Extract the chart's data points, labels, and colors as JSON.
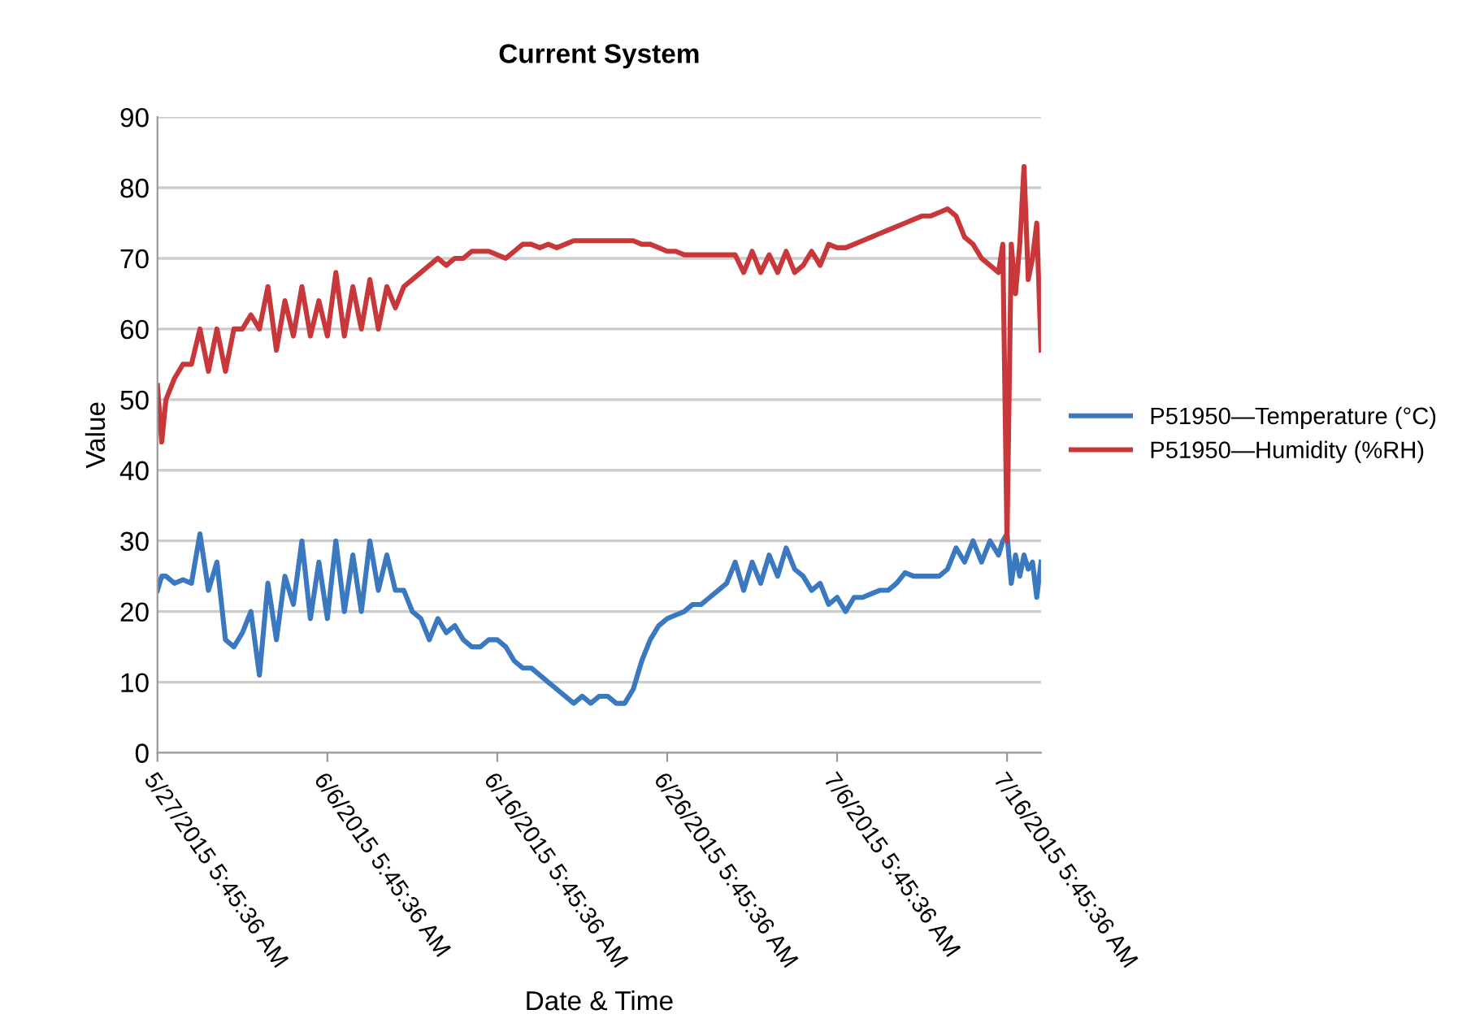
{
  "chart_data": {
    "type": "line",
    "title": "Current System",
    "xlabel": "Date & Time",
    "ylabel": "Value",
    "x": [
      "2015-05-27T05:45",
      "2015-05-27T11:45",
      "2015-05-27T17:45",
      "2015-05-28T05:45",
      "2015-05-28T17:45",
      "2015-05-29T05:45",
      "2015-05-29T17:45",
      "2015-05-30T05:45",
      "2015-05-30T17:45",
      "2015-05-31T05:45",
      "2015-05-31T17:45",
      "2015-06-01T05:45",
      "2015-06-01T17:45",
      "2015-06-02T05:45",
      "2015-06-02T17:45",
      "2015-06-03T05:45",
      "2015-06-03T17:45",
      "2015-06-04T05:45",
      "2015-06-04T17:45",
      "2015-06-05T05:45",
      "2015-06-05T17:45",
      "2015-06-06T05:45",
      "2015-06-06T17:45",
      "2015-06-07T05:45",
      "2015-06-07T17:45",
      "2015-06-08T05:45",
      "2015-06-08T17:45",
      "2015-06-09T05:45",
      "2015-06-09T17:45",
      "2015-06-10T05:45",
      "2015-06-10T17:45",
      "2015-06-11T05:45",
      "2015-06-11T17:45",
      "2015-06-12T05:45",
      "2015-06-12T17:45",
      "2015-06-13T05:45",
      "2015-06-13T17:45",
      "2015-06-14T05:45",
      "2015-06-14T17:45",
      "2015-06-15T05:45",
      "2015-06-15T17:45",
      "2015-06-16T05:45",
      "2015-06-16T17:45",
      "2015-06-17T05:45",
      "2015-06-17T17:45",
      "2015-06-18T05:45",
      "2015-06-18T17:45",
      "2015-06-19T05:45",
      "2015-06-19T17:45",
      "2015-06-20T05:45",
      "2015-06-20T17:45",
      "2015-06-21T05:45",
      "2015-06-21T17:45",
      "2015-06-22T05:45",
      "2015-06-22T17:45",
      "2015-06-23T05:45",
      "2015-06-23T17:45",
      "2015-06-24T05:45",
      "2015-06-24T17:45",
      "2015-06-25T05:45",
      "2015-06-25T17:45",
      "2015-06-26T05:45",
      "2015-06-26T17:45",
      "2015-06-27T05:45",
      "2015-06-27T17:45",
      "2015-06-28T05:45",
      "2015-06-28T17:45",
      "2015-06-29T05:45",
      "2015-06-29T17:45",
      "2015-06-30T05:45",
      "2015-06-30T17:45",
      "2015-07-01T05:45",
      "2015-07-01T17:45",
      "2015-07-02T05:45",
      "2015-07-02T17:45",
      "2015-07-03T05:45",
      "2015-07-03T17:45",
      "2015-07-04T05:45",
      "2015-07-04T17:45",
      "2015-07-05T05:45",
      "2015-07-05T17:45",
      "2015-07-06T05:45",
      "2015-07-06T17:45",
      "2015-07-07T05:45",
      "2015-07-07T17:45",
      "2015-07-08T05:45",
      "2015-07-08T17:45",
      "2015-07-09T05:45",
      "2015-07-09T17:45",
      "2015-07-10T05:45",
      "2015-07-10T17:45",
      "2015-07-11T05:45",
      "2015-07-11T17:45",
      "2015-07-12T05:45",
      "2015-07-12T17:45",
      "2015-07-13T05:45",
      "2015-07-13T17:45",
      "2015-07-14T05:45",
      "2015-07-14T17:45",
      "2015-07-15T05:45",
      "2015-07-15T17:45",
      "2015-07-15T23:45",
      "2015-07-16T05:45",
      "2015-07-16T11:45",
      "2015-07-16T17:45",
      "2015-07-16T23:45",
      "2015-07-17T05:45",
      "2015-07-17T11:45",
      "2015-07-17T17:45",
      "2015-07-17T23:45",
      "2015-07-18T05:45"
    ],
    "series": [
      {
        "name": "P51950—Temperature (°C)",
        "color": "#3a78c0",
        "values": [
          23,
          25,
          25,
          24,
          24.5,
          24,
          31,
          23,
          27,
          16,
          15,
          17,
          20,
          11,
          24,
          16,
          25,
          21,
          30,
          19,
          27,
          19,
          30,
          20,
          28,
          20,
          30,
          23,
          28,
          23,
          23,
          20,
          19,
          16,
          19,
          17,
          18,
          16,
          15,
          15,
          16,
          16,
          15,
          13,
          12,
          12,
          11,
          10,
          9,
          8,
          7,
          8,
          7,
          8,
          8,
          7,
          7,
          9,
          13,
          16,
          18,
          19,
          19.5,
          20,
          21,
          21,
          22,
          23,
          24,
          27,
          23,
          27,
          24,
          28,
          25,
          29,
          26,
          25,
          23,
          24,
          21,
          22,
          20,
          22,
          22,
          22.5,
          23,
          23,
          24,
          25.5,
          25,
          25,
          25,
          25,
          26,
          29,
          27,
          30,
          27,
          30,
          28,
          30,
          31,
          24,
          28,
          25,
          28,
          26,
          27,
          22,
          27
        ]
      },
      {
        "name": "P51950—Humidity (%RH)",
        "color": "#c8383a",
        "values": [
          52,
          44,
          50,
          53,
          55,
          55,
          60,
          54,
          60,
          54,
          60,
          60,
          62,
          60,
          66,
          57,
          64,
          59,
          66,
          59,
          64,
          59,
          68,
          59,
          66,
          60,
          67,
          60,
          66,
          63,
          66,
          67,
          68,
          69,
          70,
          69,
          70,
          70,
          71,
          71,
          71,
          70.5,
          70,
          71,
          72,
          72,
          71.5,
          72,
          71.5,
          72,
          72.5,
          72.5,
          72.5,
          72.5,
          72.5,
          72.5,
          72.5,
          72.5,
          72,
          72,
          71.5,
          71,
          71,
          70.5,
          70.5,
          70.5,
          70.5,
          70.5,
          70.5,
          70.5,
          68,
          71,
          68,
          70.5,
          68,
          71,
          68,
          69,
          71,
          69,
          72,
          71.5,
          71.5,
          72,
          72.5,
          73,
          73.5,
          74,
          74.5,
          75,
          75.5,
          76,
          76,
          76.5,
          77,
          76,
          73,
          72,
          70,
          69,
          68,
          72,
          30,
          72,
          65,
          72,
          83,
          67,
          70,
          75,
          57
        ]
      }
    ],
    "xlim": [
      "2015-05-27T05:45",
      "2015-07-18T05:45"
    ],
    "xticks": [
      {
        "value": "2015-05-27T05:45",
        "label": "5/27/2015 5:45:36 AM"
      },
      {
        "value": "2015-06-06T05:45",
        "label": "6/6/2015 5:45:36 AM"
      },
      {
        "value": "2015-06-16T05:45",
        "label": "6/16/2015 5:45:36 AM"
      },
      {
        "value": "2015-06-26T05:45",
        "label": "6/26/2015 5:45:36 AM"
      },
      {
        "value": "2015-07-06T05:45",
        "label": "7/6/2015 5:45:36 AM"
      },
      {
        "value": "2015-07-16T05:45",
        "label": "7/16/2015 5:45:36 AM"
      }
    ],
    "ylim": [
      0,
      90
    ],
    "yticks": [
      0,
      10,
      20,
      30,
      40,
      50,
      60,
      70,
      80,
      90
    ],
    "grid": "y",
    "legend": "right",
    "marker": "none",
    "line_style": "solid"
  }
}
